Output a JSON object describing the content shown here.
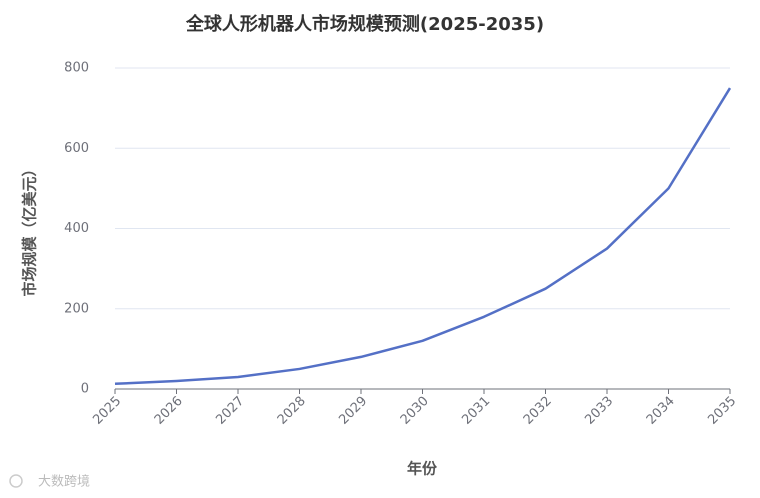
{
  "chart_data": {
    "type": "line",
    "title": "全球人形机器人市场规模预测(2025-2035)",
    "x_label": "年份",
    "y_label": "市场规模（亿美元）",
    "categories": [
      "2025",
      "2026",
      "2027",
      "2028",
      "2029",
      "2030",
      "2031",
      "2032",
      "2033",
      "2034",
      "2035"
    ],
    "series": [
      {
        "name": "市场规模",
        "color": "#5470c6",
        "values": [
          13,
          20,
          30,
          50,
          80,
          120,
          180,
          250,
          350,
          500,
          750
        ]
      }
    ],
    "ylim": [
      0,
      800
    ],
    "yticks": [
      0,
      200,
      400,
      600,
      800
    ],
    "grid": true,
    "watermark": "大数跨境"
  }
}
